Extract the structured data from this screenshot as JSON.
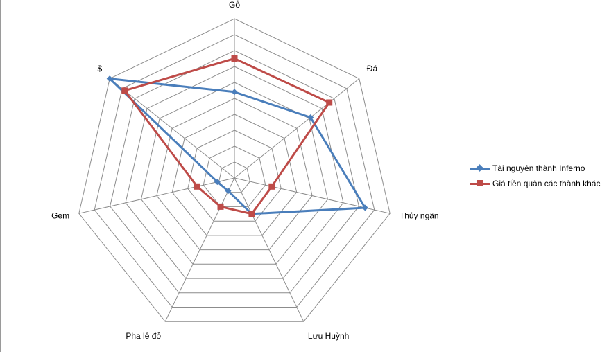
{
  "chart_data": {
    "type": "radar",
    "title": "",
    "axes": [
      "Gỗ",
      "Đá",
      "Thủy ngân",
      "Lưu Huỳnh",
      "Pha lê đỏ",
      "Gem",
      "$"
    ],
    "rings": 10,
    "r_range": [
      0,
      10
    ],
    "series": [
      {
        "name": "Tài nguyên thành Inferno",
        "color": "#4a7ebb",
        "marker": "diamond",
        "values": [
          5.4,
          6.1,
          8.4,
          2.5,
          0.9,
          1.1,
          10.0
        ]
      },
      {
        "name": "Giá tiền quân các thành khác",
        "color": "#be4b48",
        "marker": "square",
        "values": [
          7.5,
          7.6,
          2.4,
          2.5,
          2.0,
          2.4,
          8.8
        ]
      }
    ],
    "legend_position": "right"
  }
}
